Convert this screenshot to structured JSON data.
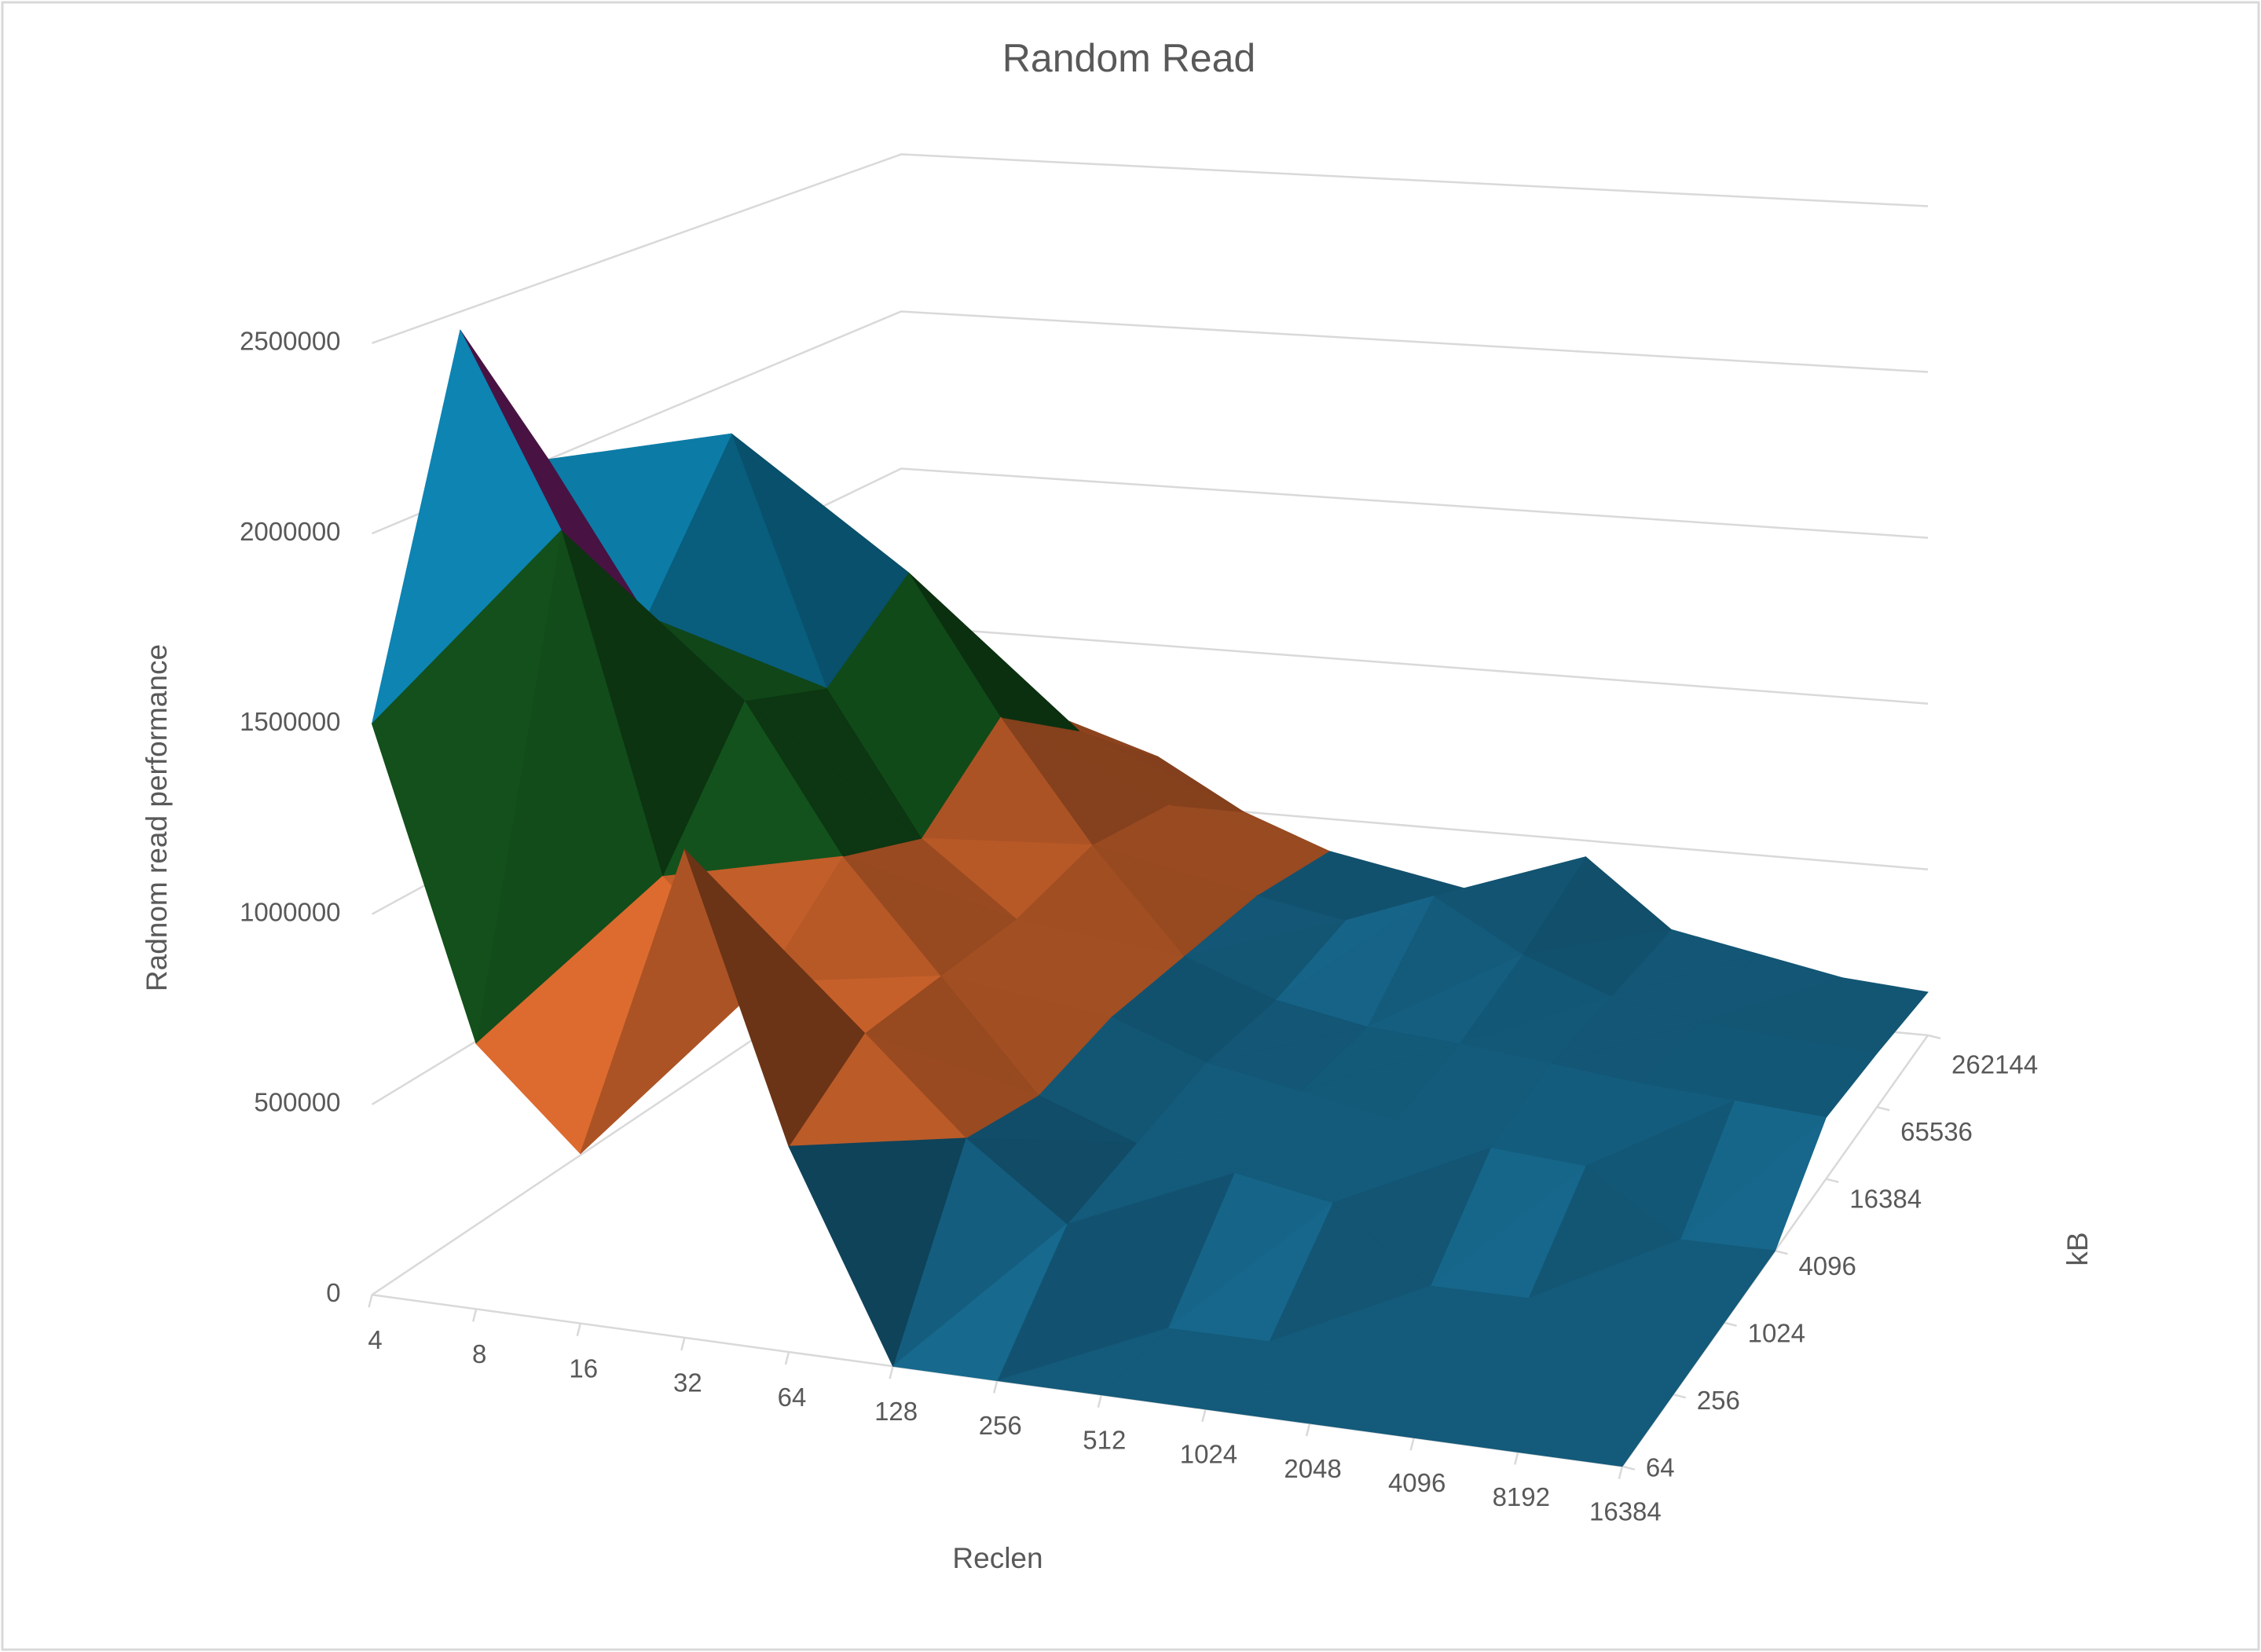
{
  "chart_data": {
    "type": "surface",
    "title": "Random Read",
    "x_label": "Reclen",
    "z_label": "Radnom read performance",
    "y_label": "kB",
    "categories": [
      "4",
      "8",
      "16",
      "32",
      "64",
      "128",
      "256",
      "512",
      "1024",
      "2048",
      "4096",
      "8192",
      "16384"
    ],
    "series": [
      {
        "name": "64",
        "values": [
          1500000,
          700000,
          450000,
          1300000,
          550000,
          0,
          0,
          0,
          0,
          0,
          0,
          0,
          0
        ]
      },
      {
        "name": "256",
        "values": [
          2450000,
          1950000,
          1050000,
          800000,
          700000,
          450000,
          250000,
          0,
          0,
          0,
          0,
          0,
          0
        ]
      },
      {
        "name": "1024",
        "values": [
          2000000,
          1600000,
          1400000,
          1000000,
          700000,
          400000,
          300000,
          250000,
          200000,
          0,
          0,
          0,
          0
        ]
      },
      {
        "name": "4096",
        "values": [
          1400000,
          2000000,
          1300000,
          900000,
          700000,
          450000,
          350000,
          300000,
          250000,
          200000,
          180000,
          0,
          0
        ]
      },
      {
        "name": "16384",
        "values": [
          900000,
          1200000,
          1500000,
          1100000,
          750000,
          450000,
          350000,
          300000,
          280000,
          250000,
          220000,
          200000,
          180000
        ]
      },
      {
        "name": "65536",
        "values": [
          600000,
          800000,
          1000000,
          900000,
          700000,
          450000,
          400000,
          500000,
          350000,
          250000,
          200000,
          180000,
          160000
        ]
      },
      {
        "name": "262144",
        "values": [
          500000,
          600000,
          700000,
          650000,
          500000,
          400000,
          350000,
          300000,
          450000,
          250000,
          200000,
          150000,
          130000
        ]
      }
    ],
    "zlim": [
      0,
      2500000
    ],
    "zticks": [
      0,
      500000,
      1000000,
      1500000,
      2000000,
      2500000
    ],
    "band_colors": [
      "#156082",
      "#e97132",
      "#196b24",
      "#0f9ed5",
      "#a02b93"
    ],
    "grid": true
  }
}
